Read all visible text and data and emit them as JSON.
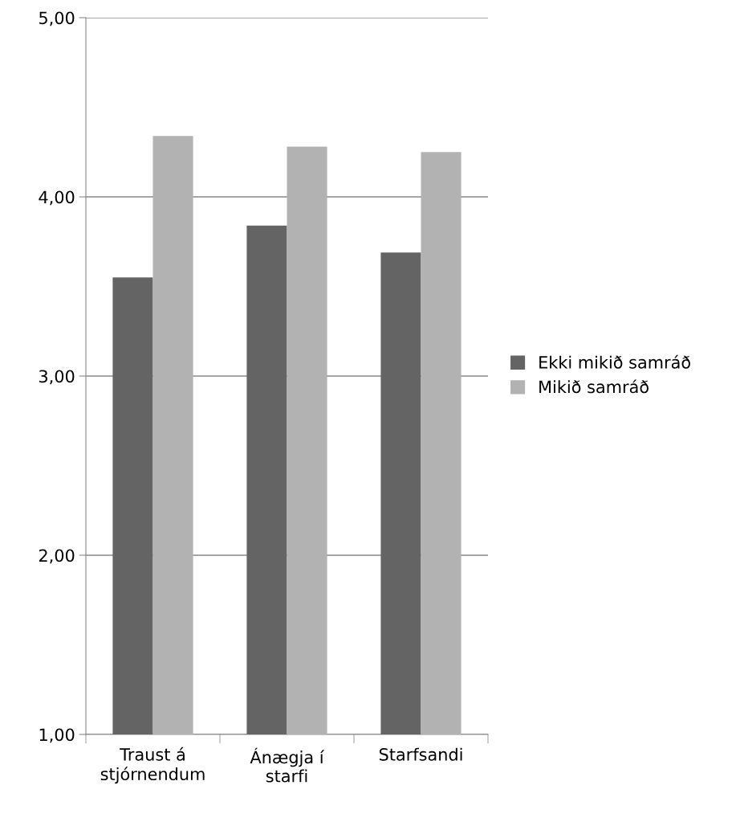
{
  "chart_data": {
    "type": "bar",
    "categories": [
      "Traust á\nstjórnendum",
      "Ánægja í\nstarfi",
      "Starfsandi"
    ],
    "series": [
      {
        "name": "Ekki mikið samráð",
        "color": "#646464",
        "values": [
          3.55,
          3.84,
          3.69
        ]
      },
      {
        "name": "Mikið samráð",
        "color": "#b2b2b2",
        "values": [
          4.34,
          4.28,
          4.25
        ]
      }
    ],
    "ylim": [
      1,
      5
    ],
    "yticks": [
      {
        "value": 1,
        "label": "1,00"
      },
      {
        "value": 2,
        "label": "2,00"
      },
      {
        "value": 3,
        "label": "3,00"
      },
      {
        "value": 4,
        "label": "4,00"
      },
      {
        "value": 5,
        "label": "5,00"
      }
    ],
    "grid": "y",
    "legend": "right"
  }
}
